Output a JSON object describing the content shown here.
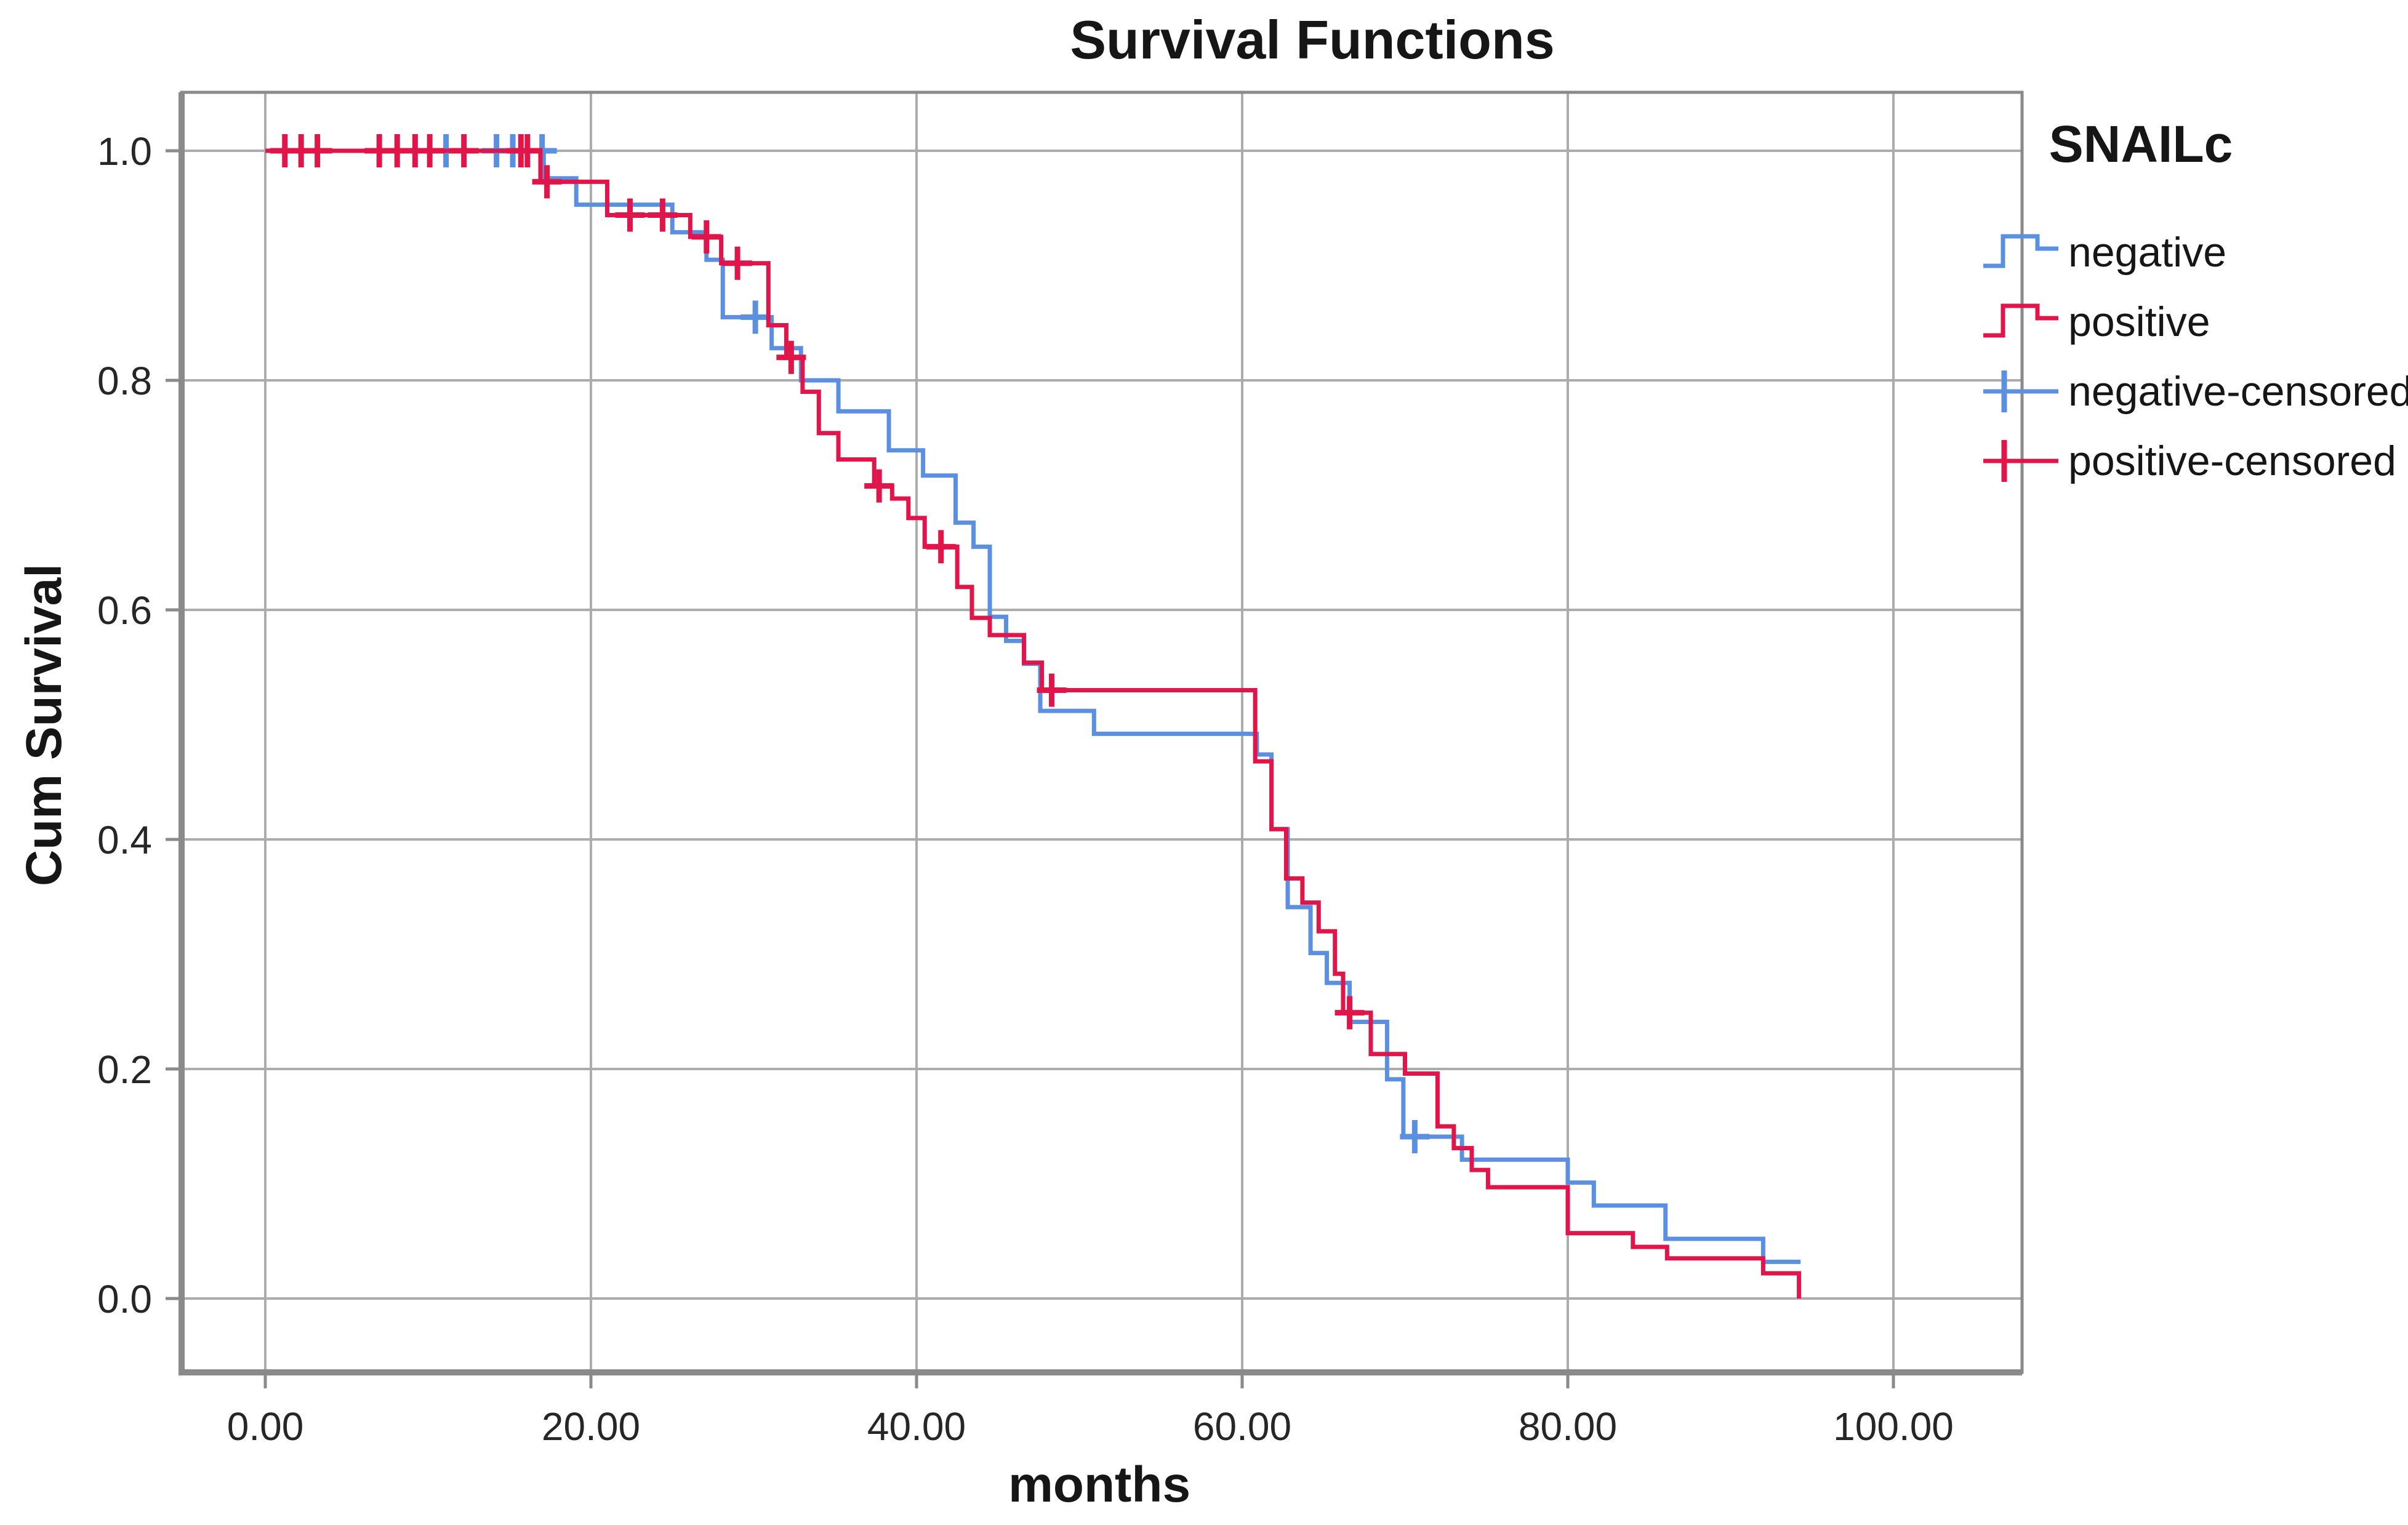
{
  "title": "Survival Functions",
  "x_axis": {
    "label": "months"
  },
  "y_axis": {
    "label": "Cum Survival"
  },
  "legend": {
    "title": "SNAILc",
    "items": [
      {
        "label": "negative",
        "kind": "line",
        "series": "negative"
      },
      {
        "label": "positive",
        "kind": "line",
        "series": "positive"
      },
      {
        "label": "negative-censored",
        "kind": "censor",
        "series": "negative"
      },
      {
        "label": "positive-censored",
        "kind": "censor",
        "series": "positive"
      }
    ]
  },
  "colors": {
    "negative": "#5B90E0",
    "positive": "#E0154A",
    "grid": "#ACACAC",
    "frame": "#8A8A8A",
    "text": "#262626"
  },
  "chart_data": {
    "type": "line",
    "subtype": "kaplan-meier-step",
    "title": "Survival Functions",
    "xlabel": "months",
    "ylabel": "Cum Survival",
    "xlim": [
      -5,
      108
    ],
    "ylim": [
      -0.06,
      1.05
    ],
    "x_tick_values": [
      0,
      20,
      40,
      60,
      80,
      100
    ],
    "x_tick_labels": [
      "0.00",
      "20.00",
      "40.00",
      "60.00",
      "80.00",
      "100.00"
    ],
    "y_tick_values": [
      1.0,
      0.8,
      0.6,
      0.4,
      0.2,
      0.0
    ],
    "y_tick_labels": [
      "1.0",
      "0.8",
      "0.6",
      "0.4",
      "0.2",
      "0.0"
    ],
    "grid": true,
    "legend_position": "right",
    "series": [
      {
        "name": "negative",
        "color": "#5B90E0",
        "start": [
          0,
          1.0
        ],
        "steps": [
          [
            17.1,
            0.976
          ],
          [
            19.1,
            0.953
          ],
          [
            25.0,
            0.929
          ],
          [
            27.1,
            0.905
          ],
          [
            28.1,
            0.855
          ],
          [
            31.1,
            0.828
          ],
          [
            32.9,
            0.8
          ],
          [
            35.2,
            0.773
          ],
          [
            38.3,
            0.739
          ],
          [
            40.4,
            0.717
          ],
          [
            42.4,
            0.676
          ],
          [
            43.5,
            0.655
          ],
          [
            44.5,
            0.594
          ],
          [
            45.5,
            0.573
          ],
          [
            46.6,
            0.553
          ],
          [
            47.6,
            0.512
          ],
          [
            50.9,
            0.492
          ],
          [
            60.9,
            0.474
          ],
          [
            61.8,
            0.409
          ],
          [
            62.8,
            0.341
          ],
          [
            64.2,
            0.301
          ],
          [
            65.2,
            0.275
          ],
          [
            66.6,
            0.241
          ],
          [
            68.9,
            0.191
          ],
          [
            69.9,
            0.141
          ],
          [
            73.5,
            0.121
          ],
          [
            80.0,
            0.101
          ],
          [
            81.6,
            0.081
          ],
          [
            86.0,
            0.052
          ],
          [
            92.0,
            0.032
          ]
        ],
        "end_t": 94.3,
        "censored": [
          [
            11.1,
            1.0
          ],
          [
            14.2,
            1.0
          ],
          [
            15.2,
            1.0
          ],
          [
            17.0,
            1.0
          ],
          [
            30.1,
            0.855
          ],
          [
            70.6,
            0.141
          ]
        ]
      },
      {
        "name": "positive",
        "color": "#E0154A",
        "start": [
          0,
          1.0
        ],
        "steps": [
          [
            16.9,
            0.973
          ],
          [
            21.0,
            0.944
          ],
          [
            26.1,
            0.925
          ],
          [
            28.0,
            0.902
          ],
          [
            30.9,
            0.848
          ],
          [
            32.0,
            0.82
          ],
          [
            33.0,
            0.79
          ],
          [
            34.0,
            0.754
          ],
          [
            35.2,
            0.731
          ],
          [
            37.4,
            0.708
          ],
          [
            38.5,
            0.697
          ],
          [
            39.5,
            0.68
          ],
          [
            40.5,
            0.655
          ],
          [
            42.5,
            0.62
          ],
          [
            43.4,
            0.593
          ],
          [
            44.5,
            0.578
          ],
          [
            46.6,
            0.554
          ],
          [
            47.7,
            0.53
          ],
          [
            60.8,
            0.468
          ],
          [
            61.8,
            0.409
          ],
          [
            62.7,
            0.366
          ],
          [
            63.7,
            0.345
          ],
          [
            64.7,
            0.32
          ],
          [
            65.7,
            0.283
          ],
          [
            66.2,
            0.249
          ],
          [
            67.9,
            0.213
          ],
          [
            70.0,
            0.196
          ],
          [
            72.0,
            0.15
          ],
          [
            73.0,
            0.131
          ],
          [
            74.1,
            0.112
          ],
          [
            75.1,
            0.097
          ],
          [
            80.0,
            0.057
          ],
          [
            84.0,
            0.045
          ],
          [
            86.1,
            0.035
          ],
          [
            92.0,
            0.022
          ],
          [
            94.2,
            0.0
          ]
        ],
        "end_t": 94.2,
        "censored": [
          [
            1.2,
            1.0
          ],
          [
            2.2,
            1.0
          ],
          [
            3.2,
            1.0
          ],
          [
            7.0,
            1.0
          ],
          [
            8.1,
            1.0
          ],
          [
            9.2,
            1.0
          ],
          [
            10.1,
            1.0
          ],
          [
            12.2,
            1.0
          ],
          [
            15.7,
            1.0
          ],
          [
            16.1,
            1.0
          ],
          [
            17.3,
            0.973
          ],
          [
            22.4,
            0.944
          ],
          [
            24.4,
            0.944
          ],
          [
            27.1,
            0.925
          ],
          [
            29.0,
            0.902
          ],
          [
            32.3,
            0.82
          ],
          [
            37.7,
            0.708
          ],
          [
            41.5,
            0.655
          ],
          [
            48.3,
            0.53
          ],
          [
            66.6,
            0.249
          ]
        ]
      }
    ]
  }
}
